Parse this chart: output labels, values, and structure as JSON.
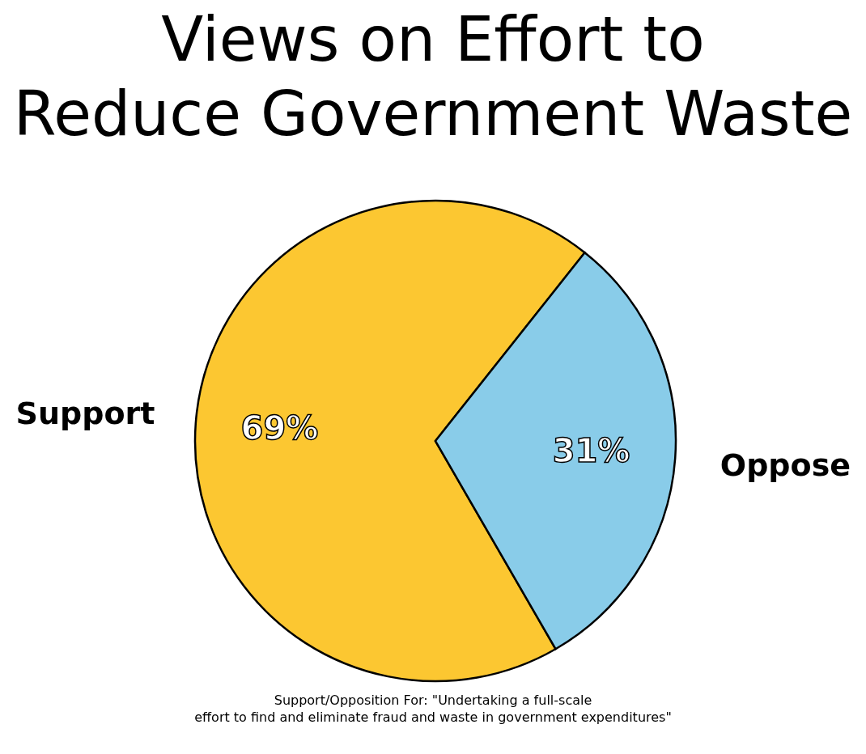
{
  "chart_data": {
    "type": "pie",
    "title": "Views on Effort to Reduce Government Waste",
    "categories": [
      "Support",
      "Oppose"
    ],
    "values": [
      69,
      31
    ],
    "colors": [
      "#fcc731",
      "#89cce9"
    ],
    "value_labels": [
      "69%",
      "31%"
    ],
    "annotations": [
      "Support/Opposition For: \"Undertaking a full-scale effort to find and eliminate fraud and waste in government expenditures\""
    ]
  }
}
